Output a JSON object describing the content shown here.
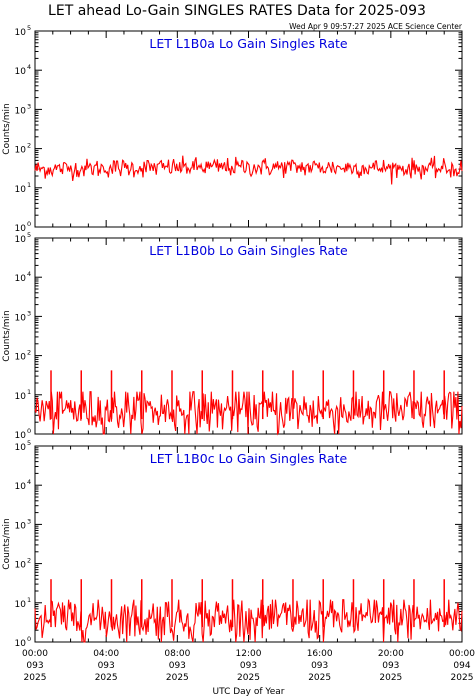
{
  "title": "LET ahead Lo-Gain SINGLES RATES Data for 2025-093",
  "timestamp": "Wed Apr  9 09:57:27 2025 ACE Science Center",
  "colors": {
    "series": "#ff0000",
    "panel_title": "#0000dd",
    "axes": "#000000"
  },
  "chart_data": [
    {
      "type": "line",
      "title": "LET L1B0a Lo Gain Singles Rate",
      "ylabel": "Counts/min",
      "yscale": "log",
      "ylim": [
        1,
        100000
      ],
      "y_ticks": [
        {
          "m": "10",
          "e": "0"
        },
        {
          "m": "10",
          "e": "1"
        },
        {
          "m": "10",
          "e": "2"
        },
        {
          "m": "10",
          "e": "3"
        },
        {
          "m": "10",
          "e": "4"
        },
        {
          "m": "10",
          "e": "5"
        }
      ],
      "xlim": [
        0,
        24
      ],
      "grid": false,
      "series": [
        {
          "baseline": 30,
          "spread": 0.12,
          "min": 12,
          "max": 70,
          "spike_hours": [],
          "spike_value": null
        }
      ]
    },
    {
      "type": "line",
      "title": "LET L1B0b Lo Gain Singles Rate",
      "ylabel": "Counts/min",
      "yscale": "log",
      "ylim": [
        1,
        100000
      ],
      "y_ticks": [
        {
          "m": "10",
          "e": "0"
        },
        {
          "m": "10",
          "e": "1"
        },
        {
          "m": "10",
          "e": "2"
        },
        {
          "m": "10",
          "e": "3"
        },
        {
          "m": "10",
          "e": "4"
        },
        {
          "m": "10",
          "e": "5"
        }
      ],
      "xlim": [
        0,
        24
      ],
      "grid": false,
      "series": [
        {
          "baseline": 4,
          "spread": 0.3,
          "min": 1,
          "max": 12,
          "spike_hours": [
            0.9,
            2.6,
            4.3,
            6.0,
            7.7,
            9.4,
            11.1,
            12.8,
            14.5,
            16.2,
            17.9,
            19.6,
            21.3,
            23.0
          ],
          "spike_value": 42
        }
      ]
    },
    {
      "type": "line",
      "title": "LET L1B0c Lo Gain Singles Rate",
      "ylabel": "Counts/min",
      "yscale": "log",
      "ylim": [
        1,
        100000
      ],
      "y_ticks": [
        {
          "m": "10",
          "e": "0"
        },
        {
          "m": "10",
          "e": "1"
        },
        {
          "m": "10",
          "e": "2"
        },
        {
          "m": "10",
          "e": "3"
        },
        {
          "m": "10",
          "e": "4"
        },
        {
          "m": "10",
          "e": "5"
        }
      ],
      "xlim": [
        0,
        24
      ],
      "grid": false,
      "series": [
        {
          "baseline": 4,
          "spread": 0.3,
          "min": 1,
          "max": 12,
          "spike_hours": [
            0.9,
            2.6,
            4.3,
            6.0,
            7.7,
            9.4,
            11.1,
            12.8,
            14.5,
            16.2,
            17.9,
            19.6,
            21.3,
            23.0
          ],
          "spike_value": 40
        }
      ]
    }
  ],
  "x_axis": {
    "label": "UTC Day of Year",
    "ticks": [
      {
        "hour": 0,
        "time": "00:00",
        "doy": "093",
        "year": "2025"
      },
      {
        "hour": 4,
        "time": "04:00",
        "doy": "093",
        "year": "2025"
      },
      {
        "hour": 8,
        "time": "08:00",
        "doy": "093",
        "year": "2025"
      },
      {
        "hour": 12,
        "time": "12:00",
        "doy": "093",
        "year": "2025"
      },
      {
        "hour": 16,
        "time": "16:00",
        "doy": "093",
        "year": "2025"
      },
      {
        "hour": 20,
        "time": "20:00",
        "doy": "093",
        "year": "2025"
      },
      {
        "hour": 24,
        "time": "00:00",
        "doy": "094",
        "year": "2025"
      }
    ]
  }
}
